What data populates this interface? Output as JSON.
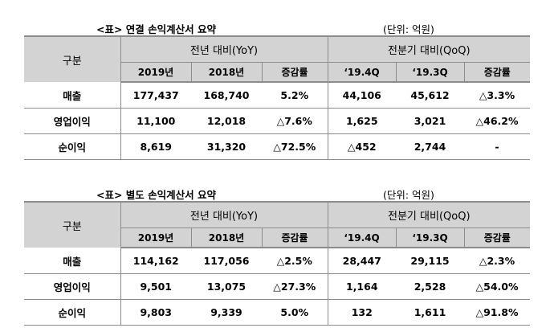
{
  "tables": [
    {
      "title": "<표> 연결 손익계산서 요약",
      "unit": "(단위: 억원)",
      "header": {
        "category": "구분",
        "yoy_group": "전년 대비(YoY)",
        "qoq_group": "전분기 대비(QoQ)",
        "cols": [
          "2019년",
          "2018년",
          "증감률",
          "‘19.4Q",
          "‘19.3Q",
          "증감률"
        ]
      },
      "rows": [
        {
          "label": "매출",
          "cells": [
            "177,437",
            "168,740",
            "5.2%",
            "44,106",
            "45,612",
            "△3.3%"
          ]
        },
        {
          "label": "영업이익",
          "cells": [
            "11,100",
            "12,018",
            "△7.6%",
            "1,625",
            "3,021",
            "△46.2%"
          ]
        },
        {
          "label": "순이익",
          "cells": [
            "8,619",
            "31,320",
            "△72.5%",
            "△452",
            "2,744",
            "-"
          ]
        }
      ]
    },
    {
      "title": "<표> 별도 손익계산서 요약",
      "unit": "(단위: 억원)",
      "header": {
        "category": "구분",
        "yoy_group": "전년 대비(YoY)",
        "qoq_group": "전분기 대비(QoQ)",
        "cols": [
          "2019년",
          "2018년",
          "증감률",
          "‘19.4Q",
          "‘19.3Q",
          "증감률"
        ]
      },
      "rows": [
        {
          "label": "매출",
          "cells": [
            "114,162",
            "117,056",
            "△2.5%",
            "28,447",
            "29,115",
            "△2.3%"
          ]
        },
        {
          "label": "영업이익",
          "cells": [
            "9,501",
            "13,075",
            "△27.3%",
            "1,164",
            "2,528",
            "△54.0%"
          ]
        },
        {
          "label": "순이익",
          "cells": [
            "9,803",
            "9,339",
            "5.0%",
            "132",
            "1,611",
            "△91.8%"
          ]
        }
      ]
    }
  ]
}
